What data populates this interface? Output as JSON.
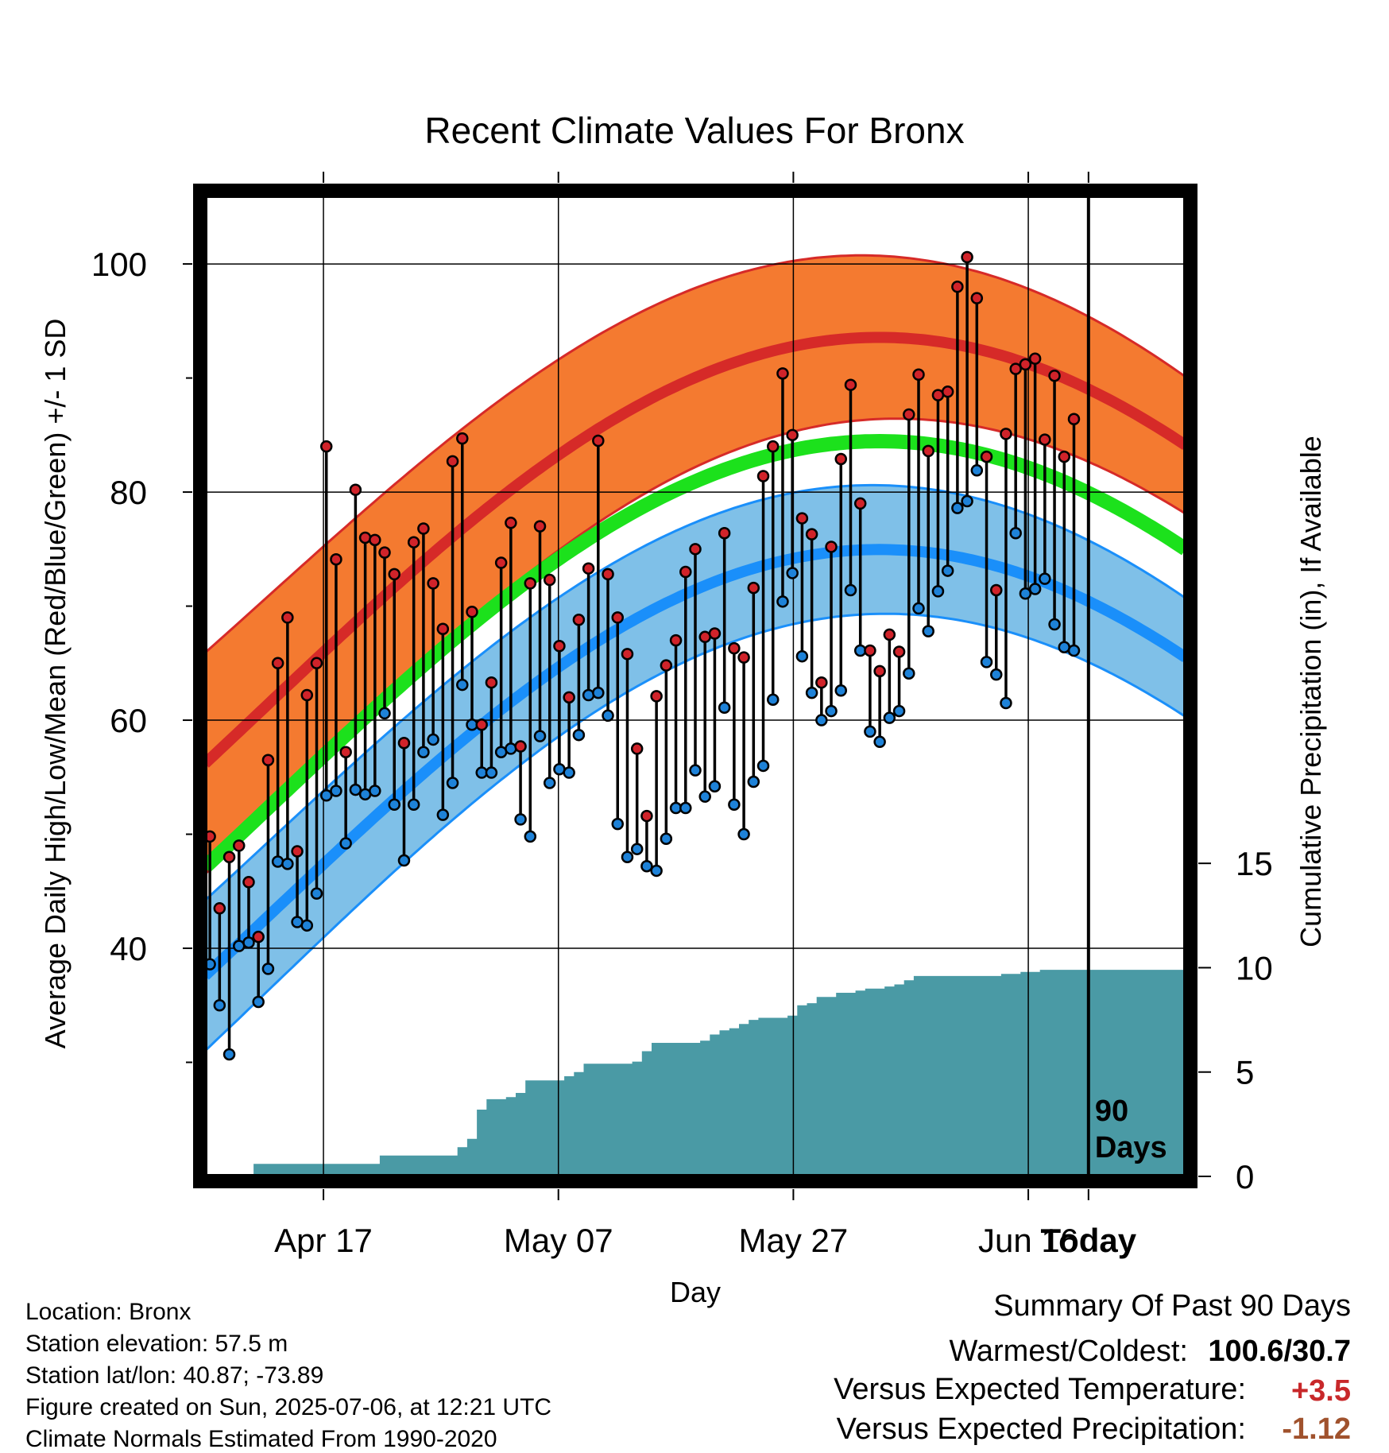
{
  "chart_data": {
    "type": "line",
    "title": "Recent Climate Values For Bronx",
    "xlabel": "Day",
    "ylabel": "Average Daily High/Low/Mean (Red/Blue/Green) +/- 1 SD",
    "y2label": "Cumulative Precipitation (in), If Available",
    "x_ticks": [
      "Apr 17",
      "May 07",
      "May 27",
      "Jun 16",
      "Today"
    ],
    "y_ticks": [
      40,
      60,
      80,
      100
    ],
    "y2_ticks": [
      0,
      5,
      10,
      15
    ],
    "today_label": "90\nDays",
    "ylim": [
      20,
      106
    ],
    "y2lim": [
      0,
      47
    ],
    "xlim": [
      0,
      101
    ],
    "today_day": 91,
    "grid": true,
    "normals": {
      "mean_high_start": 56.2,
      "mean_high_end": 84.1,
      "high_sd_start": 9.7,
      "high_sd_end": 6.0,
      "mean_start": 47.1,
      "mean_end": 75.0,
      "mean_low_start": 37.6,
      "mean_low_end": 65.5,
      "low_sd_start": 6.6,
      "low_sd_end": 5.2,
      "colors": {
        "high_band": "#f47a30",
        "high_line": "#d62a28",
        "mean_line": "#1ce11c",
        "low_band": "#7fc0e8",
        "low_line": "#1a8ffa",
        "precip": "#4a9aa5"
      }
    },
    "series": [
      {
        "name": "High",
        "color": "#d0232a",
        "values": [
          49.8,
          43.5,
          48.0,
          49.0,
          45.8,
          41.0,
          56.5,
          65.0,
          69.0,
          48.5,
          62.2,
          65.0,
          84.0,
          74.1,
          57.2,
          80.2,
          76.0,
          75.8,
          74.7,
          72.8,
          58.0,
          75.6,
          76.8,
          72.0,
          68.0,
          82.7,
          84.7,
          69.5,
          59.6,
          63.3,
          73.8,
          77.3,
          57.7,
          72.0,
          77.0,
          72.3,
          66.5,
          62.0,
          68.8,
          73.3,
          84.5,
          72.8,
          69.0,
          65.8,
          57.5,
          51.6,
          62.1,
          64.8,
          67.0,
          73.0,
          75.0,
          67.3,
          67.6,
          76.4,
          66.3,
          65.5,
          71.6,
          81.4,
          84.0,
          90.4,
          85.0,
          77.7,
          76.3,
          63.3,
          75.2,
          82.9,
          89.4,
          79.0,
          66.1,
          64.3,
          67.5,
          66.0,
          86.8,
          90.3,
          83.6,
          88.5,
          88.8,
          98.0,
          100.6,
          97.0,
          83.1,
          71.4,
          85.1,
          90.8,
          91.2,
          91.7,
          84.6,
          90.2,
          83.1,
          86.4
        ]
      },
      {
        "name": "Low",
        "color": "#1e82d8",
        "values": [
          38.6,
          35.0,
          30.7,
          40.2,
          40.5,
          35.3,
          38.2,
          47.6,
          47.4,
          42.3,
          42.0,
          44.8,
          53.4,
          53.8,
          49.2,
          53.9,
          53.5,
          53.8,
          60.6,
          52.6,
          47.7,
          52.6,
          57.2,
          58.3,
          51.7,
          54.5,
          63.1,
          59.6,
          55.4,
          55.4,
          57.2,
          57.5,
          51.3,
          49.8,
          58.6,
          54.5,
          55.7,
          55.4,
          58.7,
          62.2,
          62.4,
          60.4,
          50.9,
          48.0,
          48.7,
          47.2,
          46.8,
          49.6,
          52.3,
          52.3,
          55.6,
          53.3,
          54.2,
          61.1,
          52.6,
          50.0,
          54.6,
          56.0,
          61.8,
          70.4,
          72.9,
          65.6,
          62.4,
          60.0,
          60.8,
          62.6,
          71.4,
          66.1,
          59.0,
          58.1,
          60.2,
          60.8,
          64.1,
          69.8,
          67.8,
          71.3,
          73.1,
          78.6,
          79.2,
          81.9,
          65.1,
          64.0,
          61.5,
          76.4,
          71.1,
          71.5,
          72.4,
          68.4,
          66.4,
          66.1
        ]
      },
      {
        "name": "Cumulative Precipitation",
        "color": "#4a9aa5",
        "values": [
          0,
          0,
          0,
          0,
          0,
          0.6,
          0.6,
          0.6,
          0.6,
          0.6,
          0.6,
          0.6,
          0.6,
          0.6,
          0.6,
          0.6,
          0.6,
          0.6,
          1.0,
          1.0,
          1.0,
          1.0,
          1.0,
          1.0,
          1.0,
          1.0,
          1.4,
          1.8,
          3.2,
          3.7,
          3.7,
          3.8,
          4.0,
          4.6,
          4.6,
          4.6,
          4.6,
          4.8,
          5.0,
          5.4,
          5.4,
          5.4,
          5.4,
          5.4,
          5.5,
          6.0,
          6.4,
          6.4,
          6.4,
          6.4,
          6.4,
          6.5,
          6.8,
          7.0,
          7.1,
          7.3,
          7.5,
          7.6,
          7.6,
          7.6,
          7.7,
          8.2,
          8.3,
          8.6,
          8.6,
          8.8,
          8.8,
          8.9,
          9.0,
          9.0,
          9.1,
          9.2,
          9.4,
          9.6,
          9.6,
          9.6,
          9.6,
          9.6,
          9.6,
          9.6,
          9.6,
          9.6,
          9.7,
          9.7,
          9.8,
          9.8,
          9.9,
          9.9,
          9.9,
          9.9,
          9.9,
          9.9,
          9.9,
          9.9,
          9.9,
          9.9,
          9.9,
          9.9,
          9.9,
          9.9,
          9.9,
          9.9
        ]
      }
    ]
  },
  "info": {
    "location": "Location: Bronx",
    "elevation": "Station elevation: 57.5 m",
    "latlon": "Station lat/lon: 40.87; -73.89",
    "created": "Figure created on Sun, 2025-07-06, at 12:21 UTC",
    "normals": "Climate Normals Estimated From 1990-2020"
  },
  "summary": {
    "title": "Summary Of Past 90 Days",
    "warm_label": "Warmest/Coldest:",
    "warm_value": "100.6/30.7",
    "temp_label": "Versus Expected Temperature:",
    "temp_value": "+3.5",
    "temp_color": "#c8282a",
    "precip_label": "Versus Expected Precipitation:",
    "precip_value": "-1.12",
    "precip_color": "#a0522d"
  }
}
